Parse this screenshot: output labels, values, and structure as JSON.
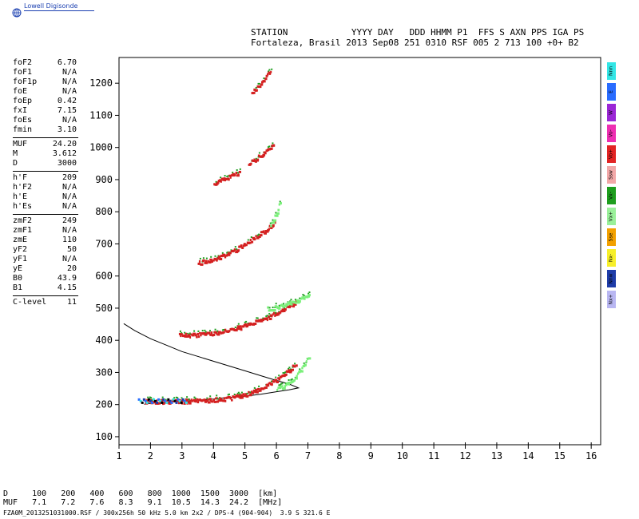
{
  "header": {
    "logo_text": "Lowell Digisonde",
    "station_line1": "STATION            YYYY DAY   DDD HHMM P1  FFS S AXN PPS IGA PS",
    "station_line2": "Fortaleza, Brasil 2013 Sep08 251 0310 RSF 005 2 713 100 +0+ B2"
  },
  "params": [
    {
      "label": "foF2",
      "value": "6.70"
    },
    {
      "label": "foF1",
      "value": "N/A"
    },
    {
      "label": "foF1p",
      "value": "N/A"
    },
    {
      "label": "foE",
      "value": "N/A"
    },
    {
      "label": "foEp",
      "value": "0.42"
    },
    {
      "label": "fxI",
      "value": "7.15"
    },
    {
      "label": "foEs",
      "value": "N/A"
    },
    {
      "label": "fmin",
      "value": "3.10"
    },
    {
      "sep": true
    },
    {
      "label": "MUF",
      "value": "24.20"
    },
    {
      "label": "M",
      "value": "3.612"
    },
    {
      "label": "D",
      "value": "3000"
    },
    {
      "sep": true
    },
    {
      "label": "h'F",
      "value": "209"
    },
    {
      "label": "h'F2",
      "value": "N/A"
    },
    {
      "label": "h'E",
      "value": "N/A"
    },
    {
      "label": "h'Es",
      "value": "N/A"
    },
    {
      "sep": true
    },
    {
      "label": "zmF2",
      "value": "249"
    },
    {
      "label": "zmF1",
      "value": "N/A"
    },
    {
      "label": "zmE",
      "value": "110"
    },
    {
      "label": "yF2",
      "value": "50"
    },
    {
      "label": "yF1",
      "value": "N/A"
    },
    {
      "label": "yE",
      "value": "20"
    },
    {
      "label": "B0",
      "value": "43.9"
    },
    {
      "label": "B1",
      "value": "4.15"
    },
    {
      "sep": true
    },
    {
      "label": "C-level",
      "value": "11"
    }
  ],
  "legend": [
    {
      "label": "Nnn",
      "color": "#33e6e6"
    },
    {
      "label": "E",
      "color": "#2a6cff"
    },
    {
      "label": "W",
      "color": "#9b27d6"
    },
    {
      "label": "Vo-",
      "color": "#ee2fb2"
    },
    {
      "label": "Vo+",
      "color": "#e22424"
    },
    {
      "label": "Ssw",
      "color": "#f2a8a8"
    },
    {
      "label": "Vx-",
      "color": "#1e9e1e"
    },
    {
      "label": "Vx+",
      "color": "#9af09a"
    },
    {
      "label": "Sse",
      "color": "#f2a000"
    },
    {
      "label": "Nx-",
      "color": "#f7ef2a"
    },
    {
      "label": "Nnw",
      "color": "#1e3ca8"
    },
    {
      "label": "Nx+",
      "color": "#b9b7f2"
    }
  ],
  "muf_table": {
    "line1": "D     100   200   400   600   800  1000  1500  3000  [km]",
    "line2": "MUF   7.1   7.2   7.6   8.3   9.1  10.5  14.3  24.2  [MHz]"
  },
  "footer": "FZA0M_2013251031000.RSF / 300x256h 50 kHz 5.0 km 2x2 / DPS-4 (904-904)  3.9 S 321.6 E",
  "chart_data": {
    "type": "scatter",
    "xlim": [
      1,
      16.3
    ],
    "ylim": [
      75,
      1280
    ],
    "xticks": [
      1,
      2,
      3,
      4,
      5,
      6,
      7,
      8,
      9,
      10,
      11,
      12,
      13,
      14,
      15,
      16
    ],
    "yticks": [
      100,
      200,
      300,
      400,
      500,
      600,
      700,
      800,
      900,
      1000,
      1100,
      1200
    ],
    "profile": {
      "x": [
        1.15,
        1.5,
        2.0,
        2.5,
        3.0,
        3.5,
        4.0,
        4.5,
        5.0,
        5.5,
        6.0,
        6.4,
        6.7,
        6.4,
        6.0,
        5.5,
        5.0,
        4.5,
        4.0,
        3.5,
        3.0,
        2.5,
        2.0,
        1.8
      ],
      "y": [
        452,
        430,
        405,
        385,
        365,
        350,
        335,
        320,
        305,
        290,
        275,
        264,
        252,
        246,
        240,
        232,
        226,
        222,
        217,
        214,
        210,
        208,
        204,
        201
      ]
    },
    "traces": [
      {
        "name": "F1-hop O",
        "color": "#d42020",
        "x0": 1.8,
        "x1": 6.6,
        "y0": 212,
        "y1": 330,
        "curv": 4.2
      },
      {
        "name": "F1-hop X",
        "color": "#7bf07b",
        "x0": 6.0,
        "x1": 7.0,
        "y0": 255,
        "y1": 350,
        "curv": 2.0
      },
      {
        "name": "F2-hop O",
        "color": "#d42020",
        "x0": 2.9,
        "x1": 6.6,
        "y0": 418,
        "y1": 520,
        "curv": 2.2
      },
      {
        "name": "F2-hop X",
        "color": "#7bf07b",
        "x0": 5.7,
        "x1": 7.0,
        "y0": 500,
        "y1": 540,
        "curv": 1.5
      },
      {
        "name": "F3-hop O",
        "color": "#d42020",
        "x0": 3.5,
        "x1": 5.9,
        "y0": 645,
        "y1": 765,
        "curv": 1.6
      },
      {
        "name": "F3-hop X",
        "color": "#7bf07b",
        "x0": 5.8,
        "x1": 6.1,
        "y0": 760,
        "y1": 830,
        "curv": 1.2
      },
      {
        "name": "F4-hop O",
        "color": "#d42020",
        "x0": 4.0,
        "x1": 4.8,
        "y0": 890,
        "y1": 925,
        "curv": 1.0
      },
      {
        "name": "F4-hop O b",
        "color": "#d42020",
        "x0": 5.1,
        "x1": 5.9,
        "y0": 950,
        "y1": 1010,
        "curv": 1.0
      },
      {
        "name": "F5-hop O",
        "color": "#d42020",
        "x0": 5.2,
        "x1": 5.8,
        "y0": 1170,
        "y1": 1240,
        "curv": 1.0
      }
    ],
    "blue_trace": {
      "x0": 1.6,
      "x1": 3.1,
      "y": 212
    }
  }
}
